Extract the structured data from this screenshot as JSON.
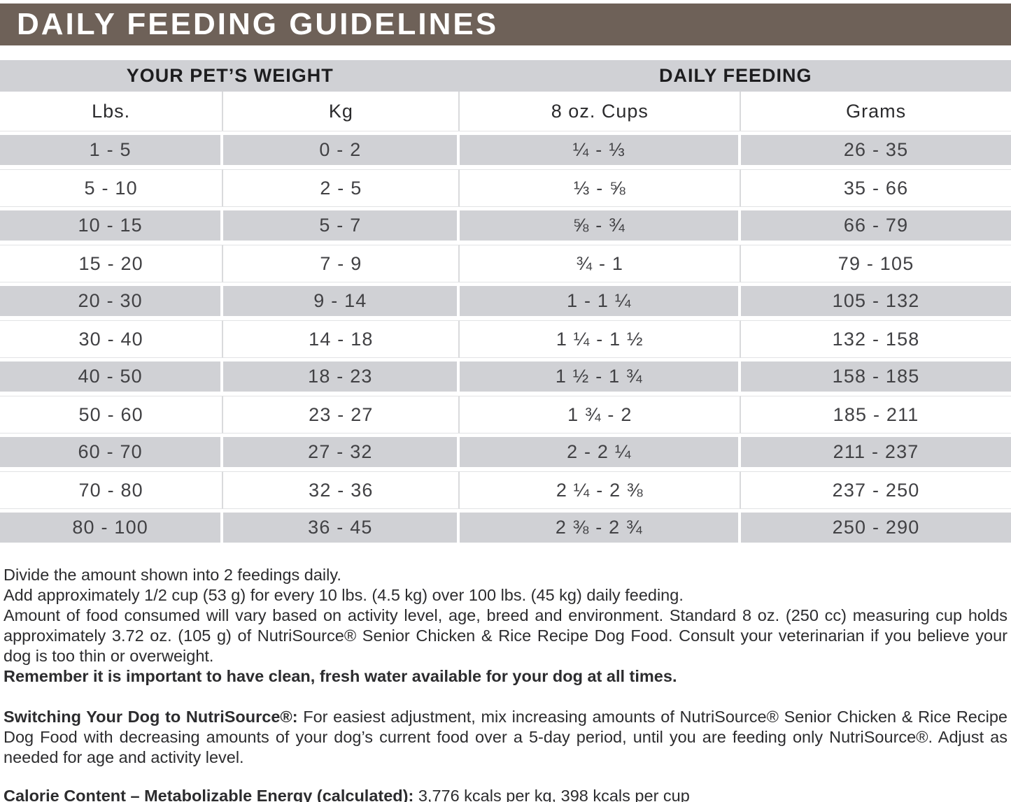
{
  "title": "DAILY FEEDING GUIDELINES",
  "table": {
    "group_headers": {
      "weight": "YOUR PET’S WEIGHT",
      "feeding": "DAILY FEEDING"
    },
    "columns": [
      "Lbs.",
      "Kg",
      "8 oz. Cups",
      "Grams"
    ],
    "rows": [
      [
        "1 - 5",
        "0 - 2",
        "¼ - ⅓",
        "26 - 35"
      ],
      [
        "5 - 10",
        "2 - 5",
        "⅓ - ⅝",
        "35 - 66"
      ],
      [
        "10 - 15",
        "5 - 7",
        "⅝ - ¾",
        "66 - 79"
      ],
      [
        "15 - 20",
        "7 - 9",
        "¾ - 1",
        "79 - 105"
      ],
      [
        "20 - 30",
        "9 - 14",
        "1 - 1 ¼",
        "105 - 132"
      ],
      [
        "30 - 40",
        "14 - 18",
        "1 ¼ - 1 ½",
        "132 - 158"
      ],
      [
        "40 - 50",
        "18 - 23",
        "1 ½ - 1 ¾",
        "158 - 185"
      ],
      [
        "50 - 60",
        "23 - 27",
        "1 ¾ - 2",
        "185 - 211"
      ],
      [
        "60 - 70",
        "27 - 32",
        "2 - 2 ¼",
        "211 - 237"
      ],
      [
        "70 - 80",
        "32 - 36",
        "2 ¼ - 2 ⅜",
        "237 - 250"
      ],
      [
        "80 - 100",
        "36 - 45",
        "2 ⅜ - 2 ¾",
        "250 - 290"
      ]
    ]
  },
  "notes": {
    "line1": "Divide the amount shown into 2 feedings daily.",
    "line2": "Add approximately 1/2 cup (53 g) for every 10 lbs. (4.5 kg) over 100 lbs. (45 kg) daily feeding.",
    "paragraph": "Amount of food consumed will vary based on activity level, age, breed and environment. Standard 8 oz. (250 cc) measuring cup holds approximately 3.72 oz. (105 g) of NutriSource® Senior Chicken & Rice Recipe Dog Food. Consult your veterinarian if you believe your dog is too thin or overweight.",
    "bold_line": "Remember it is important to have clean, fresh water available for your dog at all times."
  },
  "switching": {
    "lead": "Switching Your Dog to NutriSource®:",
    "rest": " For easiest adjustment, mix increasing amounts of NutriSource® Senior Chicken & Rice Recipe Dog Food with decreasing amounts of your dog’s current food over a 5-day period, until you are feeding only NutriSource®. Adjust as needed for age and activity level."
  },
  "calorie": {
    "lead": "Calorie Content – Metabolizable Energy (calculated):",
    "rest": " 3,776 kcals per kg, 398 kcals per cup"
  },
  "colors": {
    "header_brown": "#6e6158",
    "stripe_gray": "#d0d1d5"
  }
}
